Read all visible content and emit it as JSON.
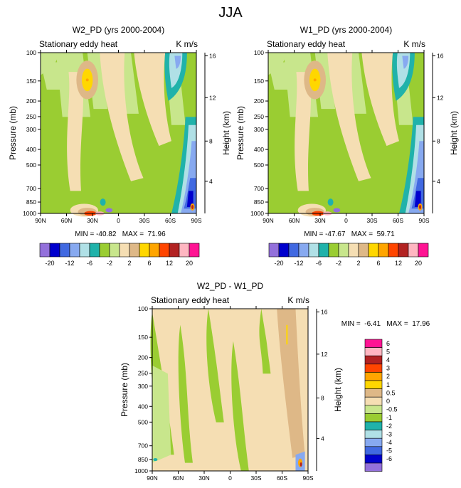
{
  "figure_title": "JJA",
  "chart_data": [
    {
      "type": "contour",
      "title": "W2_PD (yrs 2000-2004)",
      "subtitle_left": "Stationary eddy heat",
      "subtitle_right": "K m/s",
      "xlabel": "",
      "ylabel": "Pressure (mb)",
      "ylabel_right": "Height (km)",
      "x_ticks": [
        "90N",
        "60N",
        "30N",
        "0",
        "30S",
        "60S",
        "90S"
      ],
      "y_ticks": [
        "100",
        "150",
        "200",
        "250",
        "300",
        "400",
        "500",
        "700",
        "850",
        "1000"
      ],
      "y_ticks_right": [
        "16",
        "12",
        "8",
        "4"
      ],
      "min_max_text": "MIN = -40.82   MAX =  71.96",
      "min": -40.82,
      "max": 71.96
    },
    {
      "type": "contour",
      "title": "W1_PD (yrs 2000-2004)",
      "subtitle_left": "Stationary eddy heat",
      "subtitle_right": "K m/s",
      "xlabel": "",
      "ylabel": "Pressure (mb)",
      "ylabel_right": "Height (km)",
      "x_ticks": [
        "90N",
        "60N",
        "30N",
        "0",
        "30S",
        "60S",
        "90S"
      ],
      "y_ticks": [
        "100",
        "150",
        "200",
        "250",
        "300",
        "400",
        "500",
        "700",
        "850",
        "1000"
      ],
      "y_ticks_right": [
        "16",
        "12",
        "8",
        "4"
      ],
      "min_max_text": "MIN = -47.67   MAX =  59.71",
      "min": -47.67,
      "max": 59.71
    },
    {
      "type": "contour",
      "title": "W2_PD - W1_PD",
      "subtitle_left": "Stationary eddy heat",
      "subtitle_right": "K m/s",
      "xlabel": "",
      "ylabel": "Pressure (mb)",
      "ylabel_right": "Height (km)",
      "x_ticks": [
        "90N",
        "60N",
        "30N",
        "0",
        "30S",
        "60S",
        "90S"
      ],
      "y_ticks": [
        "100",
        "150",
        "200",
        "250",
        "300",
        "400",
        "500",
        "700",
        "850",
        "1000"
      ],
      "y_ticks_right": [
        "16",
        "12",
        "8",
        "4"
      ],
      "min_max_text": "MIN =  -6.41   MAX =  17.96",
      "min": -6.41,
      "max": 17.96
    }
  ],
  "shared_legend": {
    "labels": [
      "-20",
      "-12",
      "-6",
      "-2",
      "2",
      "6",
      "12",
      "20"
    ],
    "colors": [
      "#9370db",
      "#0000cd",
      "#4169e1",
      "#87a9f0",
      "#b0e0e6",
      "#20b2aa",
      "#9acd32",
      "#c8e68c",
      "#f5deb3",
      "#deb887",
      "#ffd700",
      "#ffa500",
      "#ff4500",
      "#b22222",
      "#ffb6c1",
      "#ff1493"
    ]
  },
  "diff_legend": {
    "labels": [
      "6",
      "5",
      "4",
      "3",
      "2",
      "1",
      "0.5",
      "0",
      "-0.5",
      "-1",
      "-2",
      "-3",
      "-4",
      "-5",
      "-6"
    ],
    "colors": [
      "#ff1493",
      "#ffb6c1",
      "#b22222",
      "#ff4500",
      "#ffa500",
      "#ffd700",
      "#deb887",
      "#f5deb3",
      "#c8e68c",
      "#9acd32",
      "#20b2aa",
      "#b0e0e6",
      "#87a9f0",
      "#4169e1",
      "#0000cd",
      "#9370db"
    ]
  }
}
